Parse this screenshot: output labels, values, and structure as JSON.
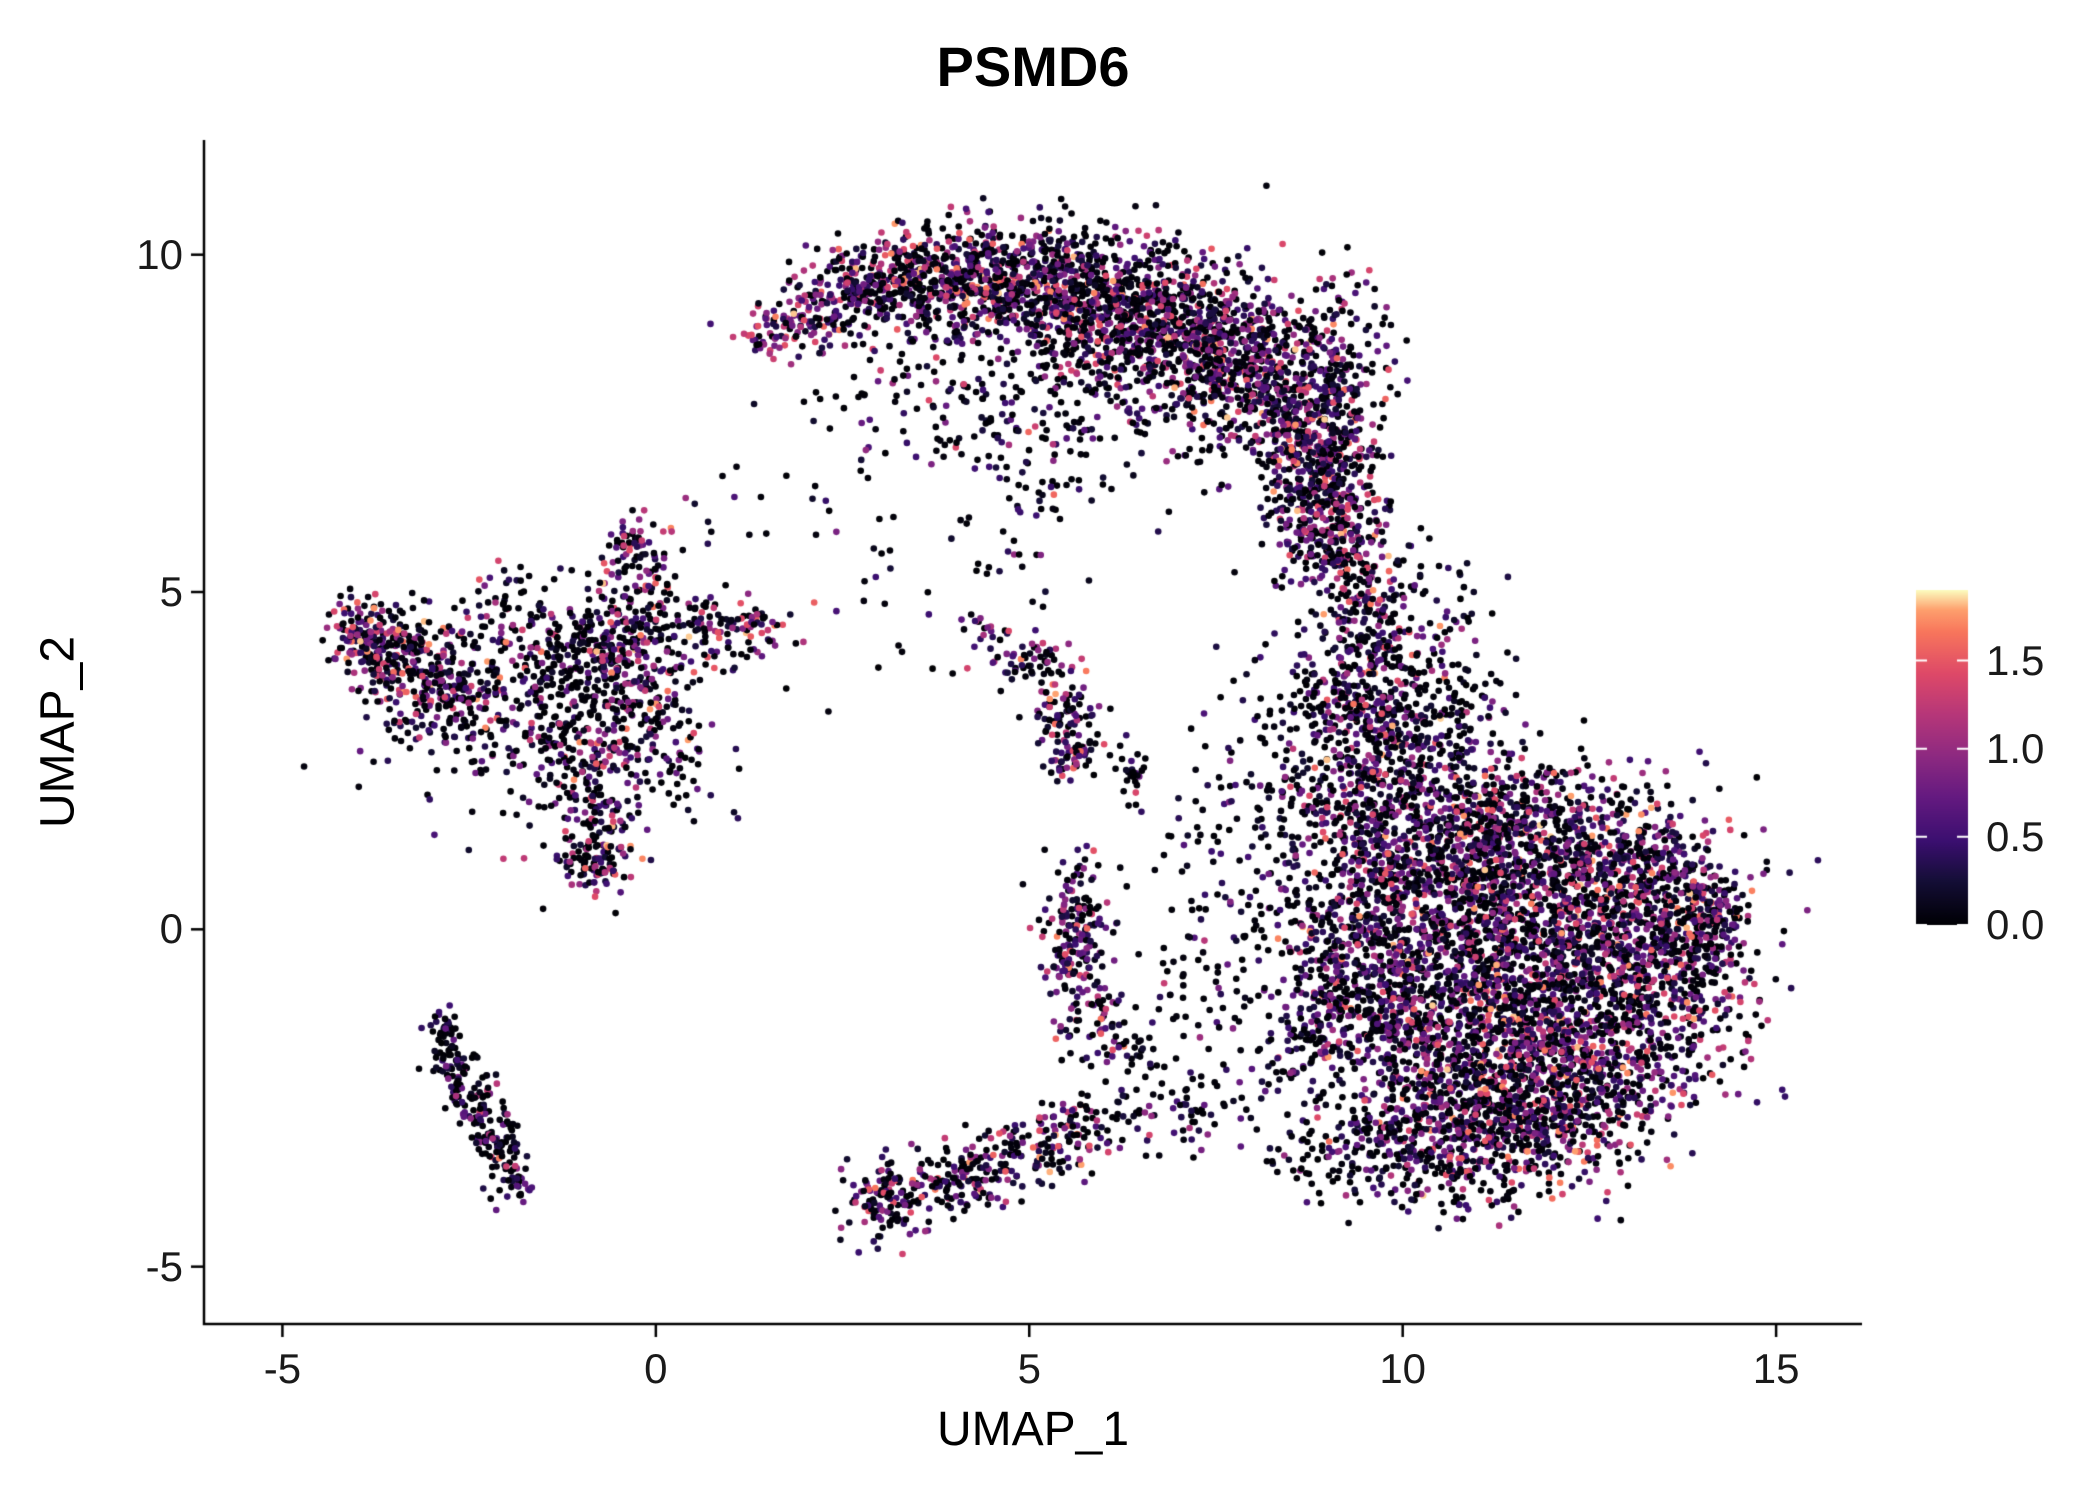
{
  "chart_data": {
    "type": "scatter",
    "title": "PSMD6",
    "xlabel": "UMAP_1",
    "ylabel": "UMAP_2",
    "xlim": [
      -6.05,
      16.15
    ],
    "ylim": [
      -5.85,
      11.7
    ],
    "grid": false,
    "x_ticks": [
      {
        "value": -5,
        "label": "-5"
      },
      {
        "value": 0,
        "label": "0"
      },
      {
        "value": 5,
        "label": "5"
      },
      {
        "value": 10,
        "label": "10"
      },
      {
        "value": 15,
        "label": "15"
      }
    ],
    "y_ticks": [
      {
        "value": 10,
        "label": "10"
      },
      {
        "value": 5,
        "label": "5"
      },
      {
        "value": 0,
        "label": "0"
      },
      {
        "value": -5,
        "label": "-5"
      }
    ],
    "legend": {
      "position": "right",
      "range": [
        0,
        1.9
      ],
      "ticks": [
        {
          "value": 1.5,
          "label": "1.5"
        },
        {
          "value": 1.0,
          "label": "1.0"
        },
        {
          "value": 0.5,
          "label": "0.5"
        },
        {
          "value": 0.0,
          "label": "0.0"
        }
      ]
    },
    "colormap": {
      "name": "magma",
      "stops": [
        [
          0.0,
          "#000004"
        ],
        [
          0.13,
          "#140e36"
        ],
        [
          0.25,
          "#3b0f70"
        ],
        [
          0.38,
          "#641a80"
        ],
        [
          0.5,
          "#8c2981"
        ],
        [
          0.63,
          "#b73779"
        ],
        [
          0.75,
          "#de4968"
        ],
        [
          0.875,
          "#f8765c"
        ],
        [
          0.94,
          "#fe9f6d"
        ],
        [
          1.0,
          "#fcfdbf"
        ]
      ]
    },
    "colors": {
      "axis": "#000000",
      "background": "#ffffff",
      "tick_text": "#1a1a1a",
      "colorbar_tick": "#ffffff"
    },
    "point_radius": 3.3,
    "seed": 42,
    "mixtures": {
      "default": [
        {
          "p": 0.4,
          "min": 0.0,
          "max": 0.06
        },
        {
          "p": 0.24,
          "min": 0.1,
          "max": 0.5
        },
        {
          "p": 0.2,
          "min": 0.5,
          "max": 1.0
        },
        {
          "p": 0.12,
          "min": 1.0,
          "max": 1.5
        },
        {
          "p": 0.04,
          "min": 1.5,
          "max": 1.85
        }
      ],
      "hot": [
        {
          "p": 0.18,
          "min": 0.0,
          "max": 0.06
        },
        {
          "p": 0.2,
          "min": 0.1,
          "max": 0.5
        },
        {
          "p": 0.3,
          "min": 0.5,
          "max": 1.0
        },
        {
          "p": 0.22,
          "min": 1.0,
          "max": 1.5
        },
        {
          "p": 0.1,
          "min": 1.5,
          "max": 1.85
        }
      ],
      "cold": [
        {
          "p": 0.62,
          "min": 0.0,
          "max": 0.06
        },
        {
          "p": 0.24,
          "min": 0.1,
          "max": 0.5
        },
        {
          "p": 0.1,
          "min": 0.5,
          "max": 1.0
        },
        {
          "p": 0.03,
          "min": 1.0,
          "max": 1.4
        },
        {
          "p": 0.01,
          "min": 1.4,
          "max": 1.7
        }
      ]
    },
    "clusters": [
      {
        "n": 70,
        "cx": 1.65,
        "cy": 8.85,
        "sx": 0.28,
        "sy": 0.22,
        "mix": "hot"
      },
      {
        "n": 150,
        "cx": 2.4,
        "cy": 9.3,
        "sx": 0.4,
        "sy": 0.3
      },
      {
        "n": 250,
        "cx": 3.2,
        "cy": 9.6,
        "sx": 0.45,
        "sy": 0.35
      },
      {
        "n": 340,
        "cx": 4.2,
        "cy": 9.7,
        "sx": 0.55,
        "sy": 0.4
      },
      {
        "n": 400,
        "cx": 5.2,
        "cy": 9.5,
        "sx": 0.6,
        "sy": 0.45
      },
      {
        "n": 450,
        "cx": 6.2,
        "cy": 9.15,
        "sx": 0.65,
        "sy": 0.55
      },
      {
        "n": 450,
        "cx": 7.2,
        "cy": 8.75,
        "sx": 0.65,
        "sy": 0.55
      },
      {
        "n": 350,
        "cx": 8.0,
        "cy": 8.3,
        "sx": 0.55,
        "sy": 0.55
      },
      {
        "n": 300,
        "cx": 8.7,
        "cy": 7.6,
        "sx": 0.45,
        "sy": 0.55
      },
      {
        "n": 80,
        "cx": 9.2,
        "cy": 8.8,
        "sx": 0.35,
        "sy": 0.5
      },
      {
        "n": 250,
        "cx": 9.0,
        "cy": 6.8,
        "sx": 0.4,
        "sy": 0.55
      },
      {
        "n": 180,
        "cx": 8.9,
        "cy": 6.0,
        "sx": 0.38,
        "sy": 0.45
      },
      {
        "n": 200,
        "cx": 6.3,
        "cy": 7.9,
        "sx": 1.2,
        "sy": 0.7,
        "mix": "cold"
      },
      {
        "n": 60,
        "cx": 3.6,
        "cy": 8.1,
        "sx": 0.5,
        "sy": 0.45,
        "mix": "cold"
      },
      {
        "n": 40,
        "cx": 4.4,
        "cy": 7.3,
        "sx": 0.4,
        "sy": 0.35,
        "mix": "cold"
      },
      {
        "n": 30,
        "cx": 5.1,
        "cy": 6.6,
        "sx": 0.4,
        "sy": 0.35,
        "mix": "cold"
      },
      {
        "n": 140,
        "cx": 9.35,
        "cy": 5.2,
        "sx": 0.33,
        "sy": 0.6
      },
      {
        "n": 140,
        "cx": 9.6,
        "cy": 4.2,
        "sx": 0.38,
        "sy": 0.55
      },
      {
        "n": 150,
        "cx": 9.5,
        "cy": 3.3,
        "sx": 0.45,
        "sy": 0.5
      },
      {
        "n": 90,
        "cx": 8.6,
        "cy": 3.0,
        "sx": 0.55,
        "sy": 0.7,
        "mix": "cold"
      },
      {
        "n": 70,
        "cx": 8.2,
        "cy": 1.8,
        "sx": 0.5,
        "sy": 0.6,
        "mix": "cold"
      },
      {
        "n": 70,
        "cx": 10.3,
        "cy": 4.6,
        "sx": 0.5,
        "sy": 0.55,
        "mix": "cold"
      },
      {
        "n": 900,
        "cx": 11.5,
        "cy": -0.5,
        "sx": 1.25,
        "sy": 1.05
      },
      {
        "n": 600,
        "cx": 12.5,
        "cy": 0.3,
        "sx": 0.95,
        "sy": 0.85
      },
      {
        "n": 500,
        "cx": 10.8,
        "cy": 0.8,
        "sx": 0.85,
        "sy": 0.85
      },
      {
        "n": 500,
        "cx": 12.8,
        "cy": -1.5,
        "sx": 0.85,
        "sy": 0.75
      },
      {
        "n": 500,
        "cx": 11.5,
        "cy": -2.2,
        "sx": 0.95,
        "sy": 0.65
      },
      {
        "n": 400,
        "cx": 10.3,
        "cy": -1.5,
        "sx": 0.75,
        "sy": 0.75
      },
      {
        "n": 250,
        "cx": 13.8,
        "cy": -0.2,
        "sx": 0.45,
        "sy": 0.65
      },
      {
        "n": 300,
        "cx": 10.5,
        "cy": 1.8,
        "sx": 0.75,
        "sy": 0.6
      },
      {
        "n": 250,
        "cx": 11.8,
        "cy": 1.5,
        "sx": 0.75,
        "sy": 0.5
      },
      {
        "n": 250,
        "cx": 9.7,
        "cy": 0.3,
        "sx": 0.55,
        "sy": 0.75
      },
      {
        "n": 180,
        "cx": 9.3,
        "cy": -0.8,
        "sx": 0.5,
        "sy": 0.6
      },
      {
        "n": 250,
        "cx": 10.3,
        "cy": -3.0,
        "sx": 0.75,
        "sy": 0.5
      },
      {
        "n": 200,
        "cx": 11.5,
        "cy": -3.2,
        "sx": 0.75,
        "sy": 0.4
      },
      {
        "n": 140,
        "cx": 9.4,
        "cy": 1.9,
        "sx": 0.45,
        "sy": 0.6
      },
      {
        "n": 110,
        "cx": 9.9,
        "cy": 2.9,
        "sx": 0.5,
        "sy": 0.45
      },
      {
        "n": 90,
        "cx": 10.7,
        "cy": 3.3,
        "sx": 0.5,
        "sy": 0.45,
        "mix": "cold"
      },
      {
        "n": 110,
        "cx": 8.8,
        "cy": -1.8,
        "sx": 0.5,
        "sy": 0.75,
        "mix": "cold"
      },
      {
        "n": 70,
        "cx": 8.6,
        "cy": 0.1,
        "sx": 0.4,
        "sy": 0.7,
        "mix": "cold"
      },
      {
        "n": 120,
        "cx": 12.6,
        "cy": -2.6,
        "sx": 0.7,
        "sy": 0.4
      },
      {
        "n": 150,
        "cx": 13.3,
        "cy": 0.9,
        "sx": 0.5,
        "sy": 0.55
      },
      {
        "n": 80,
        "cx": 14.1,
        "cy": 0.4,
        "sx": 0.3,
        "sy": 0.4
      },
      {
        "n": 60,
        "cx": 9.0,
        "cy": -3.4,
        "sx": 0.4,
        "sy": 0.35,
        "mix": "cold"
      },
      {
        "n": 40,
        "cx": 10.9,
        "cy": -3.9,
        "sx": 0.5,
        "sy": 0.25,
        "mix": "cold"
      },
      {
        "n": 200,
        "cx": -3.3,
        "cy": 3.9,
        "sx": 0.42,
        "sy": 0.42
      },
      {
        "n": 150,
        "cx": -2.7,
        "cy": 3.3,
        "sx": 0.38,
        "sy": 0.38
      },
      {
        "n": 80,
        "cx": -3.7,
        "cy": 4.3,
        "sx": 0.28,
        "sy": 0.25
      },
      {
        "n": 60,
        "cx": -4.0,
        "cy": 4.45,
        "sx": 0.2,
        "sy": 0.25,
        "mix": "hot"
      },
      {
        "n": 200,
        "cx": -1.05,
        "cy": 3.9,
        "sx": 0.45,
        "sy": 0.45,
        "mix": "cold"
      },
      {
        "n": 120,
        "cx": -0.4,
        "cy": 4.35,
        "sx": 0.38,
        "sy": 0.35
      },
      {
        "n": 120,
        "cx": -0.1,
        "cy": 3.3,
        "sx": 0.38,
        "sy": 0.45
      },
      {
        "n": 120,
        "cx": -1.0,
        "cy": 2.7,
        "sx": 0.45,
        "sy": 0.4
      },
      {
        "n": 100,
        "cx": -0.7,
        "cy": 1.6,
        "sx": 0.28,
        "sy": 0.45
      },
      {
        "n": 80,
        "cx": -0.85,
        "cy": 0.95,
        "sx": 0.26,
        "sy": 0.28
      },
      {
        "n": 80,
        "cx": 0.6,
        "cy": 4.4,
        "sx": 0.38,
        "sy": 0.3
      },
      {
        "n": 50,
        "cx": 1.25,
        "cy": 4.5,
        "sx": 0.3,
        "sy": 0.18
      },
      {
        "n": 60,
        "cx": -0.2,
        "cy": 5.3,
        "sx": 0.28,
        "sy": 0.35
      },
      {
        "n": 30,
        "cx": -0.3,
        "cy": 5.8,
        "sx": 0.18,
        "sy": 0.18
      },
      {
        "n": 150,
        "cx": -1.6,
        "cy": 3.3,
        "sx": 1.1,
        "sy": 0.95,
        "mix": "cold"
      },
      {
        "n": 60,
        "cx": -2.0,
        "cy": 4.6,
        "sx": 0.45,
        "sy": 0.35
      },
      {
        "n": 40,
        "cx": 0.3,
        "cy": 2.3,
        "sx": 0.4,
        "sy": 0.5,
        "mix": "cold"
      },
      {
        "n": 50,
        "cx": -2.85,
        "cy": -1.6,
        "sx": 0.12,
        "sy": 0.25,
        "mix": "cold"
      },
      {
        "n": 60,
        "cx": -2.6,
        "cy": -2.2,
        "sx": 0.14,
        "sy": 0.3,
        "mix": "cold"
      },
      {
        "n": 60,
        "cx": -2.3,
        "cy": -2.8,
        "sx": 0.14,
        "sy": 0.3,
        "mix": "cold"
      },
      {
        "n": 50,
        "cx": -2.05,
        "cy": -3.3,
        "sx": 0.12,
        "sy": 0.28,
        "mix": "cold"
      },
      {
        "n": 30,
        "cx": -1.85,
        "cy": -3.7,
        "sx": 0.1,
        "sy": 0.2,
        "mix": "cold"
      },
      {
        "n": 60,
        "cx": 5.0,
        "cy": 4.0,
        "sx": 0.26,
        "sy": 0.2
      },
      {
        "n": 12,
        "cx": 4.35,
        "cy": 4.6,
        "sx": 0.12,
        "sy": 0.1
      },
      {
        "n": 90,
        "cx": 5.5,
        "cy": 3.1,
        "sx": 0.24,
        "sy": 0.35
      },
      {
        "n": 40,
        "cx": 5.6,
        "cy": 2.5,
        "sx": 0.2,
        "sy": 0.2
      },
      {
        "n": 25,
        "cx": 6.4,
        "cy": 2.2,
        "sx": 0.15,
        "sy": 0.3,
        "mix": "cold"
      },
      {
        "n": 90,
        "cx": 3.0,
        "cy": -4.05,
        "sx": 0.26,
        "sy": 0.3
      },
      {
        "n": 80,
        "cx": 3.6,
        "cy": -3.85,
        "sx": 0.3,
        "sy": 0.25
      },
      {
        "n": 80,
        "cx": 4.3,
        "cy": -3.6,
        "sx": 0.33,
        "sy": 0.25
      },
      {
        "n": 70,
        "cx": 5.0,
        "cy": -3.3,
        "sx": 0.33,
        "sy": 0.25
      },
      {
        "n": 60,
        "cx": 5.6,
        "cy": -3.0,
        "sx": 0.3,
        "sy": 0.25
      },
      {
        "n": 50,
        "cx": 6.5,
        "cy": -2.8,
        "sx": 0.5,
        "sy": 0.3,
        "mix": "cold"
      },
      {
        "n": 40,
        "cx": 7.4,
        "cy": -2.6,
        "sx": 0.5,
        "sy": 0.3,
        "mix": "cold"
      },
      {
        "n": 100,
        "cx": 5.7,
        "cy": 0.3,
        "sx": 0.24,
        "sy": 0.42
      },
      {
        "n": 70,
        "cx": 5.6,
        "cy": -0.4,
        "sx": 0.2,
        "sy": 0.3
      },
      {
        "n": 60,
        "cx": 5.85,
        "cy": -1.2,
        "sx": 0.24,
        "sy": 0.35
      },
      {
        "n": 40,
        "cx": 6.3,
        "cy": -1.8,
        "sx": 0.3,
        "sy": 0.3,
        "mix": "cold"
      },
      {
        "n": 60,
        "cx": 7.6,
        "cy": 0.8,
        "sx": 0.65,
        "sy": 0.85,
        "mix": "cold"
      },
      {
        "n": 50,
        "cx": 7.3,
        "cy": -0.9,
        "sx": 0.55,
        "sy": 0.55,
        "mix": "cold"
      },
      {
        "n": 25,
        "cx": 3.0,
        "cy": 6.0,
        "sx": 0.8,
        "sy": 0.8,
        "mix": "cold"
      },
      {
        "n": 20,
        "cx": 4.6,
        "cy": 5.3,
        "sx": 0.5,
        "sy": 0.5,
        "mix": "cold"
      },
      {
        "n": 15,
        "cx": 2.2,
        "cy": 7.6,
        "sx": 0.5,
        "sy": 0.5,
        "mix": "cold"
      },
      {
        "n": 12,
        "cx": 1.0,
        "cy": 6.3,
        "sx": 0.4,
        "sy": 0.6,
        "mix": "cold"
      },
      {
        "n": 10,
        "cx": 3.3,
        "cy": 4.3,
        "sx": 0.6,
        "sy": 0.5,
        "mix": "cold"
      }
    ]
  }
}
